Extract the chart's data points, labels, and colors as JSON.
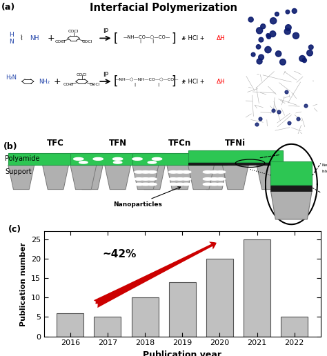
{
  "title": "Interfacial Polymerization",
  "panel_c": {
    "years": [
      2016,
      2017,
      2018,
      2019,
      2020,
      2021,
      2022
    ],
    "values": [
      6,
      5,
      10,
      14,
      20,
      25,
      5
    ],
    "bar_color": "#c0c0c0",
    "bar_edgecolor": "#555555",
    "xlabel": "Publication year",
    "ylabel": "Publication number",
    "ylim": [
      0,
      27
    ],
    "yticks": [
      0,
      5,
      10,
      15,
      20,
      25
    ],
    "annotation_text": "~42%",
    "arrow_color": "#cc0000"
  },
  "panel_b": {
    "labels": [
      "TFC",
      "TFN",
      "TFCn",
      "TFNi"
    ],
    "polyamide_label": "Polyamide",
    "support_label": "Support",
    "nanoparticles_label": "Nanoparticles",
    "green_color": "#2dc653",
    "gray_color": "#b0b0b0",
    "dark_color": "#1a1a1a"
  }
}
